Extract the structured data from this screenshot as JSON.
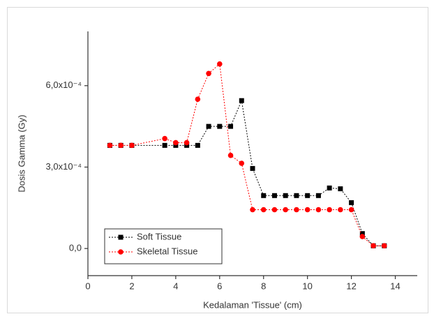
{
  "chart_data": {
    "type": "line",
    "x_label": "Kedalaman 'Tissue' (cm)",
    "y_label": "Dosis Gamma (Gy)",
    "xlim": [
      0,
      15
    ],
    "xticks": [
      0,
      2,
      4,
      6,
      8,
      10,
      12,
      14
    ],
    "ylim": [
      -0.0001,
      0.0008
    ],
    "yticks": [
      {
        "value": 0,
        "label": "0,0"
      },
      {
        "value": 0.0003,
        "label": "3,0x10⁻⁴"
      },
      {
        "value": 0.0006,
        "label": "6,0x10⁻⁴"
      }
    ],
    "legend": "lower left",
    "series": [
      {
        "name": "Soft Tissue",
        "color": "#000000",
        "marker": "square",
        "x": [
          1,
          1.5,
          2,
          3.5,
          4,
          4.5,
          5,
          5.5,
          6,
          6.5,
          7,
          7.5,
          8,
          8.5,
          9,
          9.5,
          10,
          10.5,
          11,
          11.5,
          12,
          12.5,
          13,
          13.5
        ],
        "values": [
          0.00038,
          0.00038,
          0.00038,
          0.00038,
          0.00038,
          0.00038,
          0.00038,
          0.00045,
          0.00045,
          0.00045,
          0.000545,
          0.000295,
          0.000195,
          0.000195,
          0.000195,
          0.000195,
          0.000195,
          0.000195,
          0.000223,
          0.00022,
          0.000169,
          5.5e-05,
          1e-05,
          1e-05
        ]
      },
      {
        "name": "Skeletal Tissue",
        "color": "#ff0000",
        "marker": "circle",
        "x": [
          1,
          1.5,
          2,
          3.5,
          4,
          4.5,
          5,
          5.5,
          6,
          6.5,
          7,
          7.5,
          8,
          8.5,
          9,
          9.5,
          10,
          10.5,
          11,
          11.5,
          12,
          12.5,
          13,
          13.5
        ],
        "values": [
          0.00038,
          0.00038,
          0.00038,
          0.000405,
          0.00039,
          0.00039,
          0.00055,
          0.000645,
          0.00068,
          0.000343,
          0.000314,
          0.000143,
          0.000143,
          0.000143,
          0.000143,
          0.000143,
          0.000143,
          0.000143,
          0.000143,
          0.000143,
          0.000143,
          4.4e-05,
          1e-05,
          1e-05
        ]
      }
    ]
  }
}
